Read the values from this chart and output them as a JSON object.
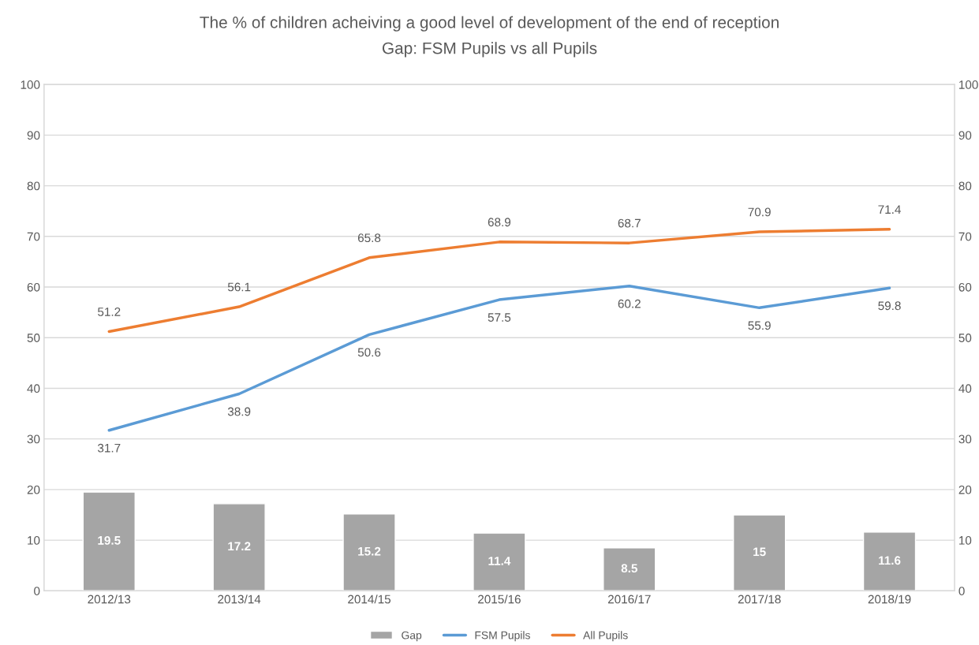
{
  "chart_data": {
    "type": "bar",
    "title": "The % of children acheiving a good level of development of the end of reception",
    "subtitle": "Gap: FSM Pupils vs all Pupils",
    "categories": [
      "2012/13",
      "2013/14",
      "2014/15",
      "2015/16",
      "2016/17",
      "2017/18",
      "2018/19"
    ],
    "series": [
      {
        "name": "Gap",
        "color": "#a5a5a5",
        "values": [
          19.5,
          17.2,
          15.2,
          11.4,
          8.5,
          15,
          11.6
        ]
      },
      {
        "name": "FSM Pupils",
        "type": "line",
        "color": "#5b9bd5",
        "values": [
          31.7,
          38.9,
          50.6,
          57.5,
          60.2,
          55.9,
          59.8
        ]
      },
      {
        "name": "All Pupils",
        "type": "line",
        "color": "#ed7d31",
        "values": [
          51.2,
          56.1,
          65.8,
          68.9,
          68.7,
          70.9,
          71.4
        ]
      }
    ],
    "ylim": [
      0,
      100
    ],
    "yticks": [
      0,
      10,
      20,
      30,
      40,
      50,
      60,
      70,
      80,
      90,
      100
    ],
    "y2lim": [
      0,
      100
    ],
    "y2ticks": [
      0,
      10,
      20,
      30,
      40,
      50,
      60,
      70,
      80,
      90,
      100
    ],
    "data_labels": true,
    "grid": "y",
    "legend": "bottom"
  }
}
